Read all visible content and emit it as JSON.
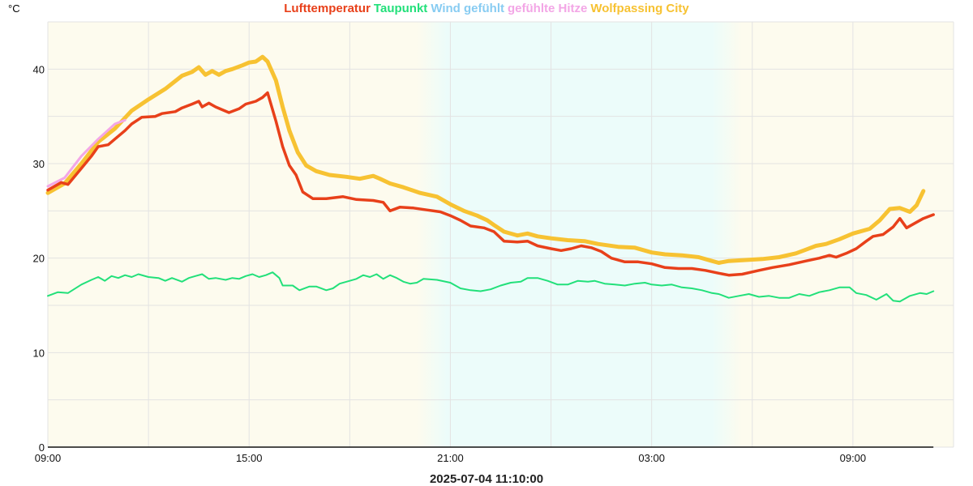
{
  "unit": "°C",
  "footer": "2025-07-04 11:10:00",
  "legend": [
    {
      "label": "Lufttemperatur",
      "color": "#e8401a"
    },
    {
      "label": "Taupunkt",
      "color": "#22e07a"
    },
    {
      "label": "Wind gefühlt",
      "color": "#88ccf2"
    },
    {
      "label": "gefühlte Hitze",
      "color": "#f3a6e6"
    },
    {
      "label": "Wolfpassing City",
      "color": "#f7c232"
    }
  ],
  "colors": {
    "day_bg": "#fdfbee",
    "night_bg": "#ecfcfa",
    "grid": "#e3e3e3",
    "axis": "#111111"
  },
  "chart_data": {
    "type": "line",
    "x_unit": "hours since 09:00",
    "xlim": [
      0,
      26.1
    ],
    "ylim": [
      0,
      45
    ],
    "x_ticks": [
      {
        "x": 0,
        "label": "09:00"
      },
      {
        "x": 6,
        "label": "15:00"
      },
      {
        "x": 12,
        "label": "21:00"
      },
      {
        "x": 18,
        "label": "03:00"
      },
      {
        "x": 24,
        "label": "09:00"
      }
    ],
    "y_ticks": [
      0,
      10,
      20,
      30,
      40
    ],
    "grid": true,
    "night": {
      "from": 11.6,
      "to": 20.2
    },
    "series": [
      {
        "name": "Wolfpassing City",
        "color": "#f7c232",
        "width": 5,
        "points": [
          [
            0,
            26.9
          ],
          [
            0.5,
            27.9
          ],
          [
            1,
            30
          ],
          [
            1.5,
            32.3
          ],
          [
            2,
            33.7
          ],
          [
            2.5,
            35.6
          ],
          [
            3,
            36.8
          ],
          [
            3.5,
            37.9
          ],
          [
            4,
            39.3
          ],
          [
            4.3,
            39.7
          ],
          [
            4.5,
            40.2
          ],
          [
            4.7,
            39.4
          ],
          [
            4.9,
            39.8
          ],
          [
            5.1,
            39.4
          ],
          [
            5.3,
            39.8
          ],
          [
            5.5,
            40
          ],
          [
            5.8,
            40.4
          ],
          [
            6,
            40.7
          ],
          [
            6.2,
            40.8
          ],
          [
            6.4,
            41.3
          ],
          [
            6.55,
            40.8
          ],
          [
            6.8,
            38.8
          ],
          [
            7,
            36
          ],
          [
            7.2,
            33.5
          ],
          [
            7.45,
            31.2
          ],
          [
            7.7,
            29.8
          ],
          [
            8,
            29.2
          ],
          [
            8.4,
            28.8
          ],
          [
            8.9,
            28.6
          ],
          [
            9.3,
            28.4
          ],
          [
            9.7,
            28.7
          ],
          [
            9.9,
            28.4
          ],
          [
            10.2,
            27.9
          ],
          [
            10.6,
            27.5
          ],
          [
            11.1,
            26.9
          ],
          [
            11.6,
            26.5
          ],
          [
            12,
            25.7
          ],
          [
            12.4,
            25
          ],
          [
            12.8,
            24.5
          ],
          [
            13.1,
            24
          ],
          [
            13.3,
            23.5
          ],
          [
            13.6,
            22.8
          ],
          [
            14,
            22.4
          ],
          [
            14.3,
            22.6
          ],
          [
            14.6,
            22.3
          ],
          [
            15,
            22.1
          ],
          [
            15.5,
            21.9
          ],
          [
            16,
            21.8
          ],
          [
            16.4,
            21.5
          ],
          [
            17,
            21.2
          ],
          [
            17.5,
            21.1
          ],
          [
            18,
            20.6
          ],
          [
            18.4,
            20.4
          ],
          [
            18.9,
            20.3
          ],
          [
            19.4,
            20.1
          ],
          [
            19.8,
            19.7
          ],
          [
            20,
            19.5
          ],
          [
            20.3,
            19.7
          ],
          [
            20.8,
            19.8
          ],
          [
            21.3,
            19.9
          ],
          [
            21.8,
            20.1
          ],
          [
            22.3,
            20.5
          ],
          [
            22.6,
            20.9
          ],
          [
            22.9,
            21.3
          ],
          [
            23.2,
            21.5
          ],
          [
            23.6,
            22
          ],
          [
            24,
            22.6
          ],
          [
            24.5,
            23.1
          ],
          [
            24.8,
            24
          ],
          [
            25.1,
            25.2
          ],
          [
            25.4,
            25.3
          ],
          [
            25.7,
            24.9
          ],
          [
            25.9,
            25.6
          ],
          [
            26.1,
            27.1
          ]
        ]
      },
      {
        "name": "gefühlte Hitze",
        "color": "#f3a6e6",
        "width": 3,
        "points": [
          [
            0,
            27.6
          ],
          [
            0.5,
            28.5
          ],
          [
            1,
            30.8
          ],
          [
            1.5,
            32.6
          ],
          [
            2,
            34.2
          ],
          [
            2.3,
            34.6
          ]
        ]
      },
      {
        "name": "Lufttemperatur",
        "color": "#e8401a",
        "width": 3.5,
        "points": [
          [
            0,
            27.2
          ],
          [
            0.4,
            28
          ],
          [
            0.6,
            27.8
          ],
          [
            1,
            29.5
          ],
          [
            1.3,
            30.8
          ],
          [
            1.5,
            31.8
          ],
          [
            1.8,
            32
          ],
          [
            2,
            32.6
          ],
          [
            2.3,
            33.5
          ],
          [
            2.5,
            34.2
          ],
          [
            2.8,
            34.9
          ],
          [
            3.2,
            35
          ],
          [
            3.4,
            35.3
          ],
          [
            3.8,
            35.5
          ],
          [
            4,
            35.9
          ],
          [
            4.3,
            36.3
          ],
          [
            4.5,
            36.6
          ],
          [
            4.6,
            36
          ],
          [
            4.8,
            36.4
          ],
          [
            5,
            36
          ],
          [
            5.2,
            35.7
          ],
          [
            5.4,
            35.4
          ],
          [
            5.7,
            35.8
          ],
          [
            5.9,
            36.3
          ],
          [
            6.2,
            36.6
          ],
          [
            6.4,
            37
          ],
          [
            6.55,
            37.5
          ],
          [
            6.8,
            34.5
          ],
          [
            7,
            31.8
          ],
          [
            7.2,
            29.8
          ],
          [
            7.4,
            28.8
          ],
          [
            7.6,
            27
          ],
          [
            7.9,
            26.3
          ],
          [
            8.3,
            26.3
          ],
          [
            8.8,
            26.5
          ],
          [
            9.2,
            26.2
          ],
          [
            9.7,
            26.1
          ],
          [
            10,
            25.9
          ],
          [
            10.2,
            25
          ],
          [
            10.5,
            25.4
          ],
          [
            10.9,
            25.3
          ],
          [
            11.3,
            25.1
          ],
          [
            11.7,
            24.9
          ],
          [
            12,
            24.5
          ],
          [
            12.3,
            24
          ],
          [
            12.6,
            23.4
          ],
          [
            13,
            23.2
          ],
          [
            13.3,
            22.8
          ],
          [
            13.6,
            21.8
          ],
          [
            14,
            21.7
          ],
          [
            14.3,
            21.8
          ],
          [
            14.6,
            21.3
          ],
          [
            15,
            21
          ],
          [
            15.3,
            20.8
          ],
          [
            15.6,
            21
          ],
          [
            15.9,
            21.3
          ],
          [
            16.2,
            21.1
          ],
          [
            16.5,
            20.7
          ],
          [
            16.8,
            20
          ],
          [
            17.2,
            19.6
          ],
          [
            17.6,
            19.6
          ],
          [
            18,
            19.4
          ],
          [
            18.4,
            19
          ],
          [
            18.8,
            18.9
          ],
          [
            19.2,
            18.9
          ],
          [
            19.6,
            18.7
          ],
          [
            20,
            18.4
          ],
          [
            20.3,
            18.2
          ],
          [
            20.7,
            18.3
          ],
          [
            21.2,
            18.7
          ],
          [
            21.6,
            19
          ],
          [
            22.1,
            19.3
          ],
          [
            22.6,
            19.7
          ],
          [
            23,
            20
          ],
          [
            23.3,
            20.3
          ],
          [
            23.5,
            20.1
          ],
          [
            23.8,
            20.5
          ],
          [
            24.1,
            21
          ],
          [
            24.4,
            21.8
          ],
          [
            24.6,
            22.3
          ],
          [
            24.9,
            22.5
          ],
          [
            25.2,
            23.3
          ],
          [
            25.4,
            24.2
          ],
          [
            25.6,
            23.2
          ],
          [
            25.9,
            23.8
          ],
          [
            26.1,
            24.2
          ],
          [
            26.4,
            24.6
          ]
        ]
      },
      {
        "name": "Taupunkt",
        "color": "#22e07a",
        "width": 2,
        "points": [
          [
            0,
            16
          ],
          [
            0.3,
            16.4
          ],
          [
            0.6,
            16.3
          ],
          [
            1,
            17.2
          ],
          [
            1.3,
            17.7
          ],
          [
            1.5,
            18
          ],
          [
            1.7,
            17.6
          ],
          [
            1.9,
            18.1
          ],
          [
            2.1,
            17.9
          ],
          [
            2.3,
            18.2
          ],
          [
            2.5,
            18
          ],
          [
            2.7,
            18.3
          ],
          [
            3,
            18
          ],
          [
            3.3,
            17.9
          ],
          [
            3.5,
            17.6
          ],
          [
            3.7,
            17.9
          ],
          [
            4,
            17.5
          ],
          [
            4.2,
            17.9
          ],
          [
            4.4,
            18.1
          ],
          [
            4.6,
            18.3
          ],
          [
            4.8,
            17.8
          ],
          [
            5,
            17.9
          ],
          [
            5.3,
            17.7
          ],
          [
            5.5,
            17.9
          ],
          [
            5.7,
            17.8
          ],
          [
            5.9,
            18.1
          ],
          [
            6.1,
            18.3
          ],
          [
            6.3,
            18
          ],
          [
            6.5,
            18.2
          ],
          [
            6.7,
            18.5
          ],
          [
            6.9,
            17.9
          ],
          [
            7,
            17.1
          ],
          [
            7.3,
            17.1
          ],
          [
            7.5,
            16.6
          ],
          [
            7.8,
            17
          ],
          [
            8,
            17
          ],
          [
            8.3,
            16.6
          ],
          [
            8.5,
            16.8
          ],
          [
            8.7,
            17.3
          ],
          [
            9,
            17.6
          ],
          [
            9.2,
            17.8
          ],
          [
            9.4,
            18.2
          ],
          [
            9.6,
            18
          ],
          [
            9.8,
            18.3
          ],
          [
            10,
            17.8
          ],
          [
            10.2,
            18.2
          ],
          [
            10.4,
            17.9
          ],
          [
            10.6,
            17.5
          ],
          [
            10.8,
            17.3
          ],
          [
            11,
            17.4
          ],
          [
            11.2,
            17.8
          ],
          [
            11.6,
            17.7
          ],
          [
            12,
            17.4
          ],
          [
            12.3,
            16.8
          ],
          [
            12.6,
            16.6
          ],
          [
            12.9,
            16.5
          ],
          [
            13.2,
            16.7
          ],
          [
            13.5,
            17.1
          ],
          [
            13.8,
            17.4
          ],
          [
            14.1,
            17.5
          ],
          [
            14.3,
            17.9
          ],
          [
            14.6,
            17.9
          ],
          [
            14.9,
            17.6
          ],
          [
            15.2,
            17.2
          ],
          [
            15.5,
            17.2
          ],
          [
            15.8,
            17.6
          ],
          [
            16.1,
            17.5
          ],
          [
            16.3,
            17.6
          ],
          [
            16.6,
            17.3
          ],
          [
            16.9,
            17.2
          ],
          [
            17.2,
            17.1
          ],
          [
            17.5,
            17.3
          ],
          [
            17.8,
            17.4
          ],
          [
            18,
            17.2
          ],
          [
            18.3,
            17.1
          ],
          [
            18.6,
            17.2
          ],
          [
            18.9,
            16.9
          ],
          [
            19.2,
            16.8
          ],
          [
            19.5,
            16.6
          ],
          [
            19.8,
            16.3
          ],
          [
            20,
            16.2
          ],
          [
            20.3,
            15.8
          ],
          [
            20.6,
            16
          ],
          [
            20.9,
            16.2
          ],
          [
            21.2,
            15.9
          ],
          [
            21.5,
            16
          ],
          [
            21.8,
            15.8
          ],
          [
            22.1,
            15.8
          ],
          [
            22.4,
            16.2
          ],
          [
            22.7,
            16
          ],
          [
            23,
            16.4
          ],
          [
            23.3,
            16.6
          ],
          [
            23.6,
            16.9
          ],
          [
            23.9,
            16.9
          ],
          [
            24.1,
            16.3
          ],
          [
            24.4,
            16.1
          ],
          [
            24.7,
            15.6
          ],
          [
            25,
            16.2
          ],
          [
            25.2,
            15.5
          ],
          [
            25.4,
            15.4
          ],
          [
            25.7,
            16
          ],
          [
            26,
            16.3
          ],
          [
            26.2,
            16.2
          ],
          [
            26.4,
            16.5
          ]
        ]
      }
    ]
  }
}
